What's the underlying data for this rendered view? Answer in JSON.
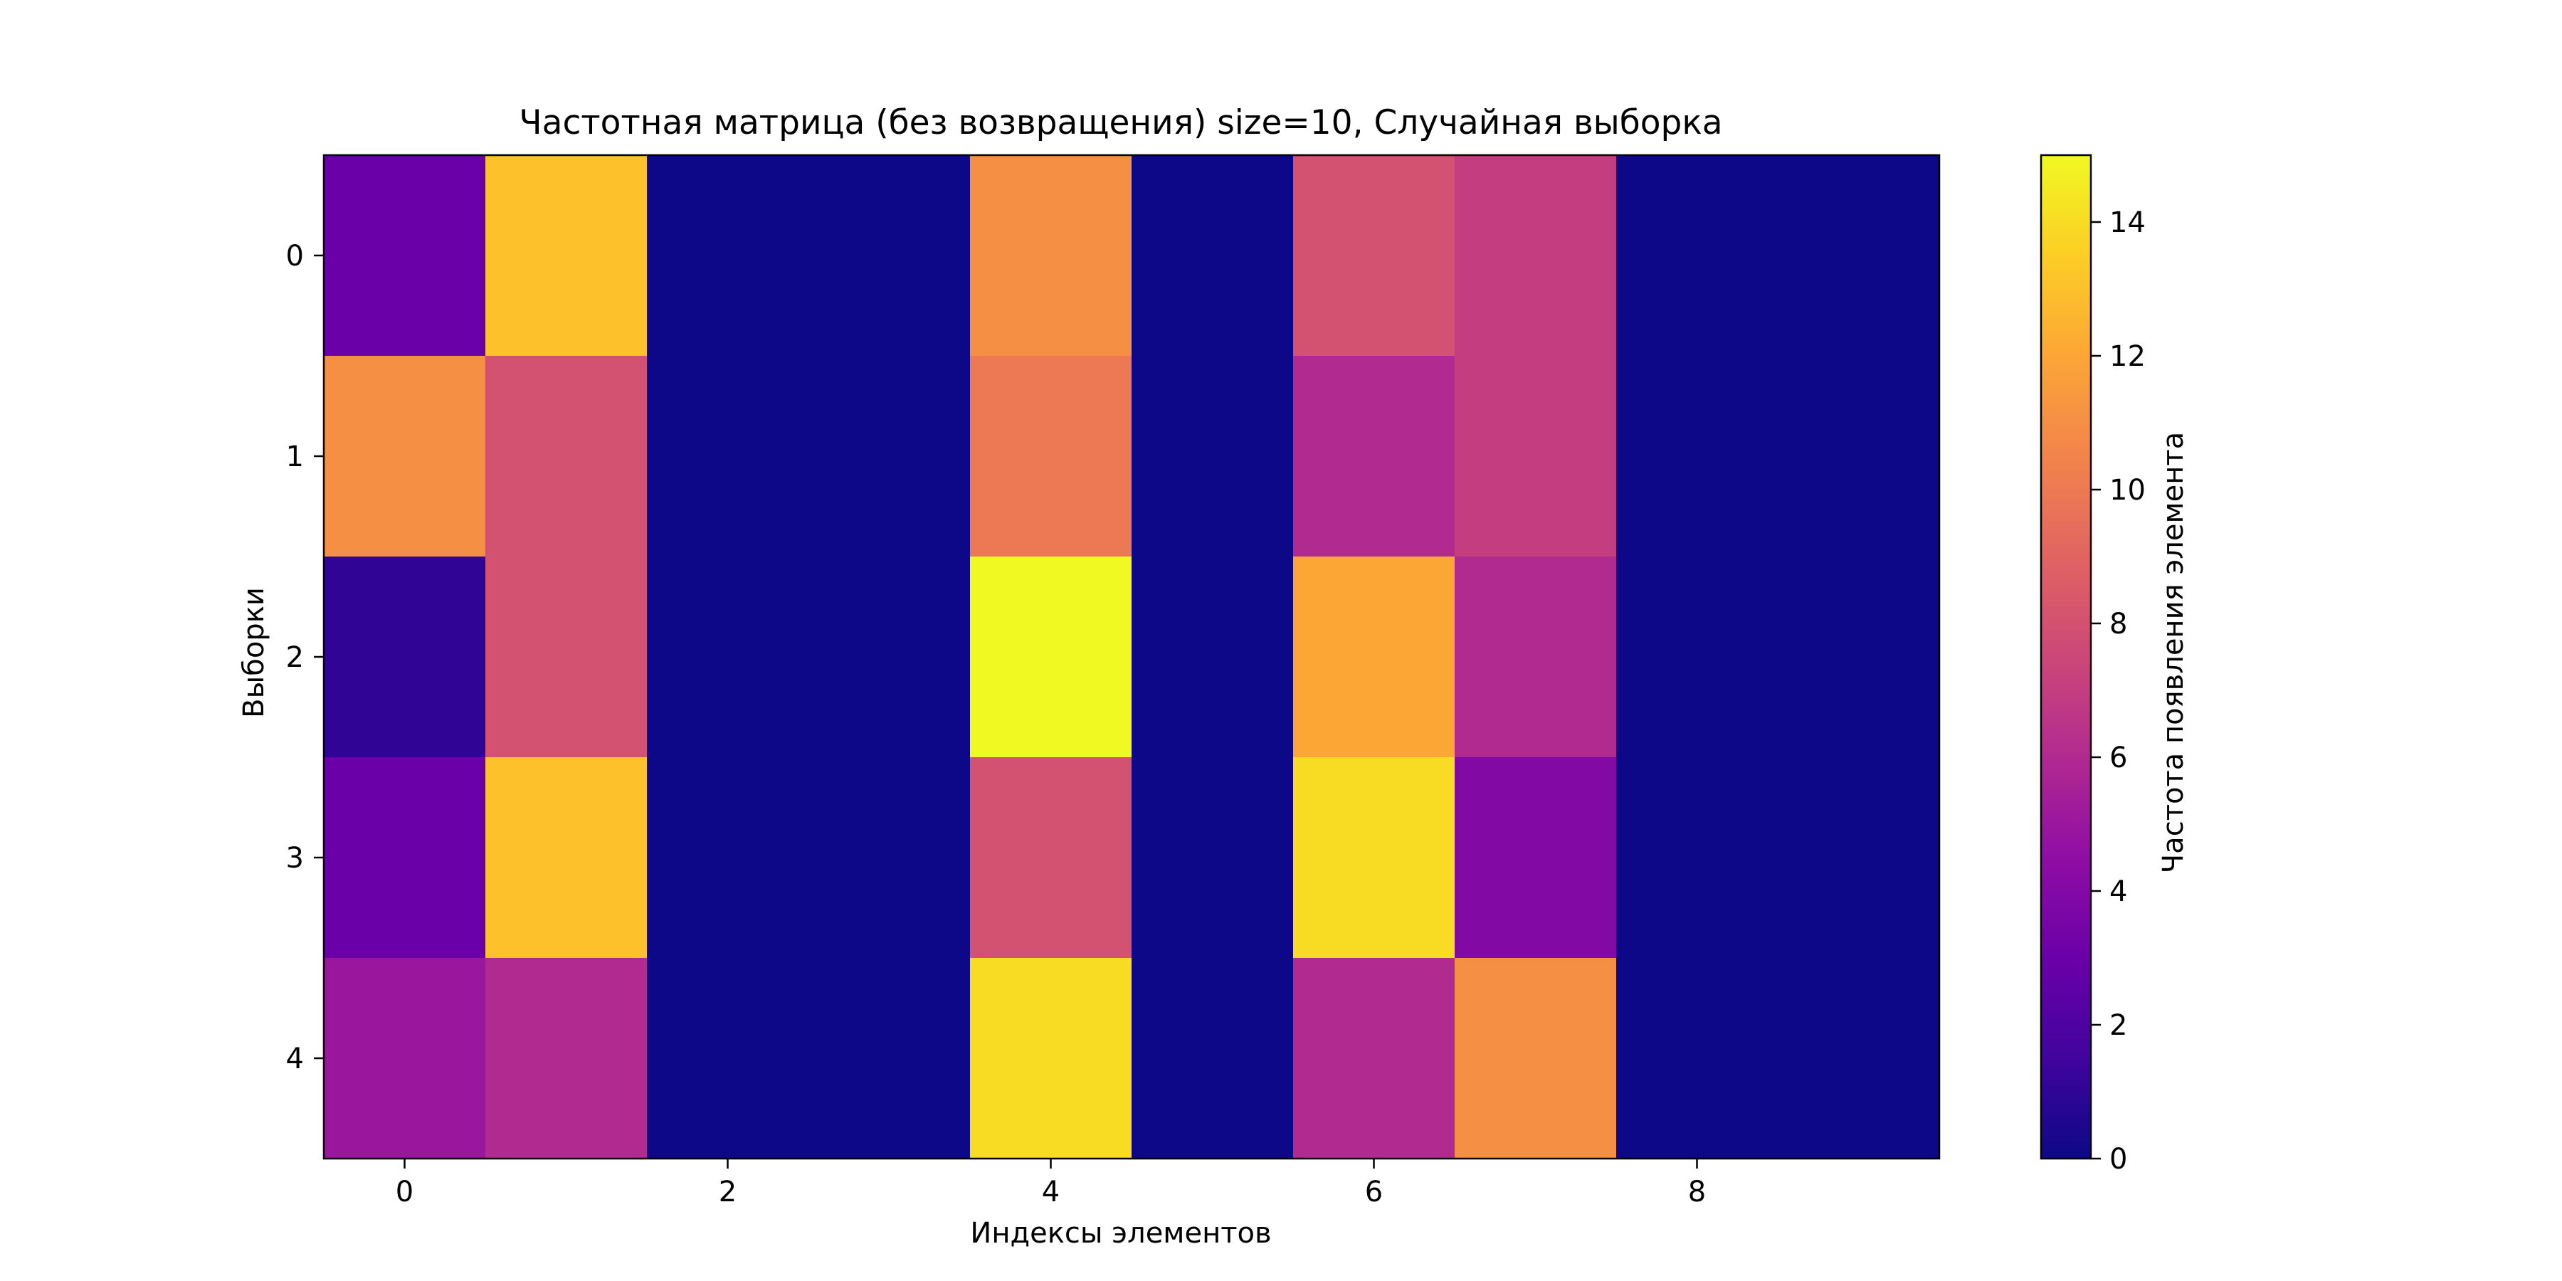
{
  "chart_data": {
    "type": "heatmap",
    "title": "Частотная матрица (без возвращения) size=10, Случайная выборка",
    "xlabel": "Индексы элементов",
    "ylabel": "Выборки",
    "colorbar_label": "Частота появления элемента",
    "colormap": "plasma",
    "vmin": 0,
    "vmax": 15,
    "x_categories": [
      0,
      1,
      2,
      3,
      4,
      5,
      6,
      7,
      8,
      9
    ],
    "y_categories": [
      0,
      1,
      2,
      3,
      4
    ],
    "x_tick_labels": [
      "0",
      "2",
      "4",
      "6",
      "8"
    ],
    "x_tick_values": [
      0,
      2,
      4,
      6,
      8
    ],
    "y_tick_labels": [
      "0",
      "1",
      "2",
      "3",
      "4"
    ],
    "colorbar_ticks": [
      "0",
      "2",
      "4",
      "6",
      "8",
      "10",
      "12",
      "14"
    ],
    "colorbar_tick_values": [
      0,
      2,
      4,
      6,
      8,
      10,
      12,
      14
    ],
    "values": [
      [
        3,
        13,
        0,
        0,
        11,
        0,
        8,
        7,
        0,
        0
      ],
      [
        11,
        8,
        0,
        0,
        10,
        0,
        6,
        7,
        0,
        0
      ],
      [
        1,
        8,
        0,
        0,
        15,
        0,
        12,
        6,
        0,
        0
      ],
      [
        3,
        13,
        0,
        0,
        8,
        0,
        14,
        4,
        0,
        0
      ],
      [
        5,
        6,
        0,
        0,
        14,
        0,
        6,
        11,
        0,
        0
      ]
    ]
  }
}
